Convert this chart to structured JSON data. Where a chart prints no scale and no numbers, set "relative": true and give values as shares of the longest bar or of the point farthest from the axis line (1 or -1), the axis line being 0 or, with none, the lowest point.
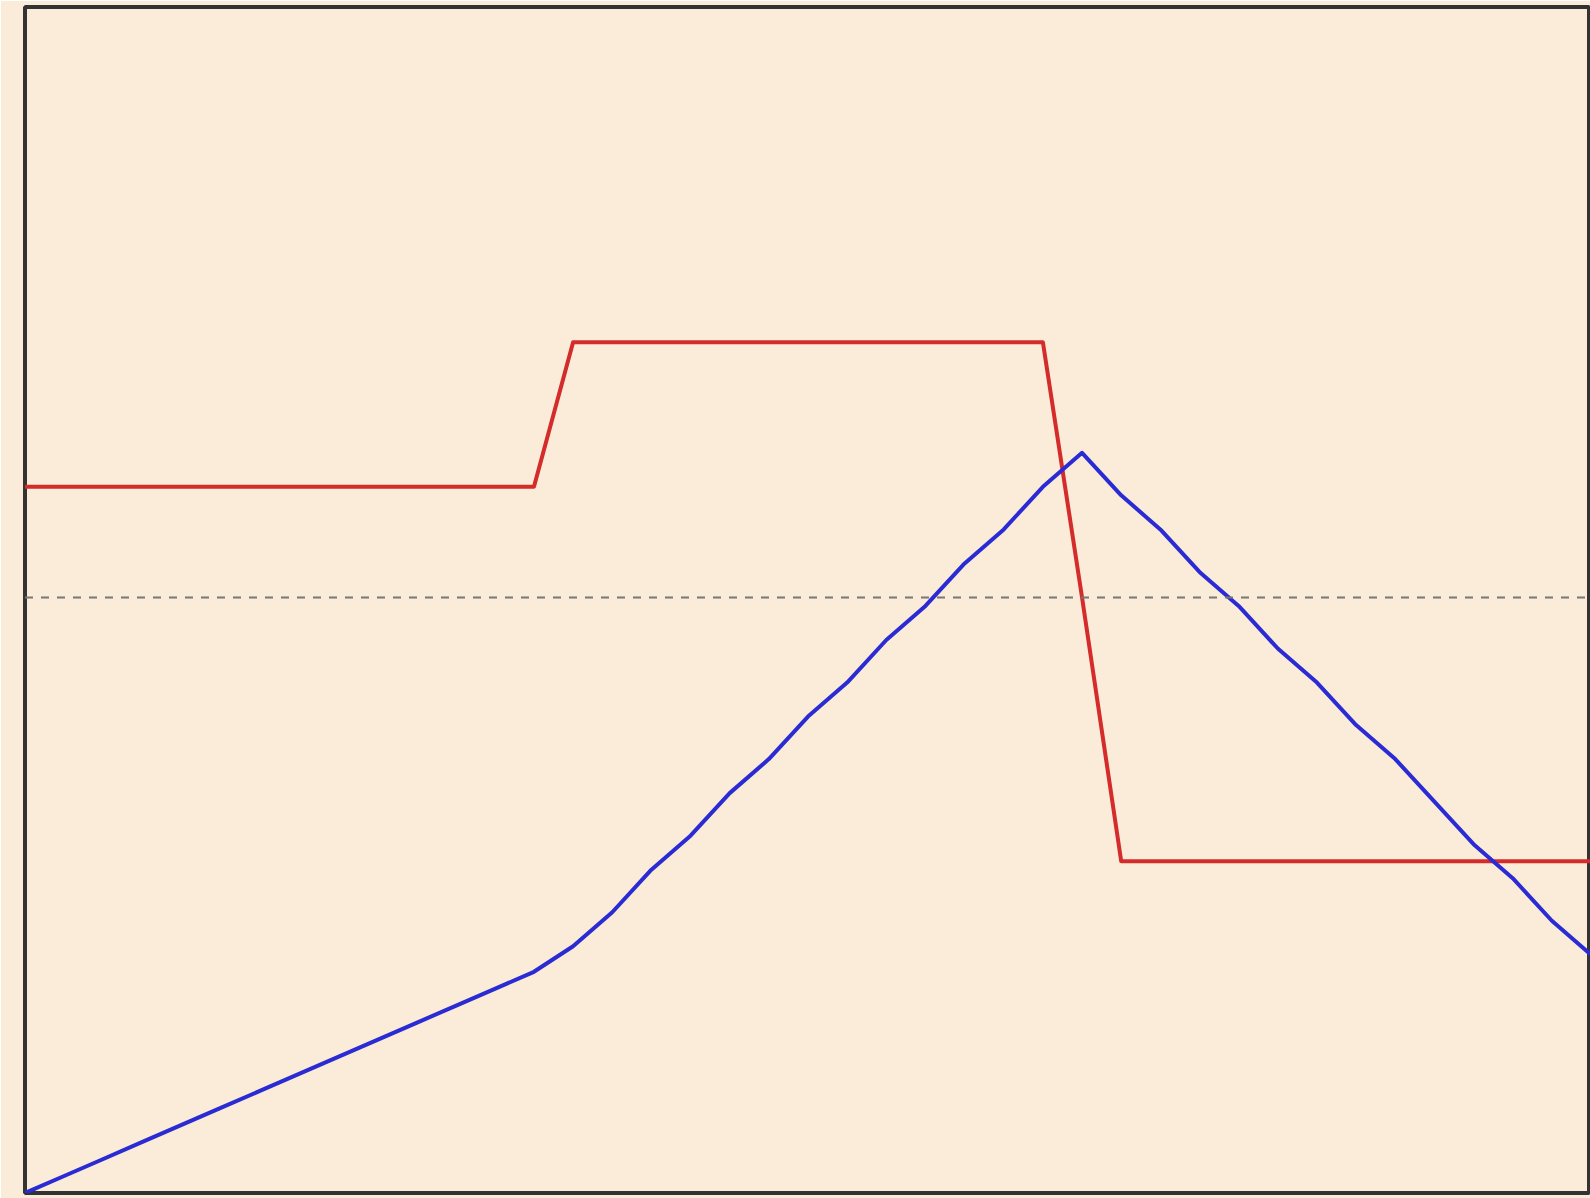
{
  "chart_data": {
    "type": "line",
    "relative": true,
    "grid": false,
    "marker": "none",
    "line_style": "solid",
    "categories": [
      null,
      null,
      null,
      null,
      null,
      null,
      null,
      null,
      null,
      null,
      null,
      null,
      null,
      null,
      null,
      null,
      null,
      null,
      null,
      null,
      null,
      null,
      null,
      null,
      null,
      null,
      null,
      null,
      null,
      null,
      null,
      null,
      null,
      null,
      null,
      null,
      null,
      null,
      null,
      null,
      null
    ],
    "series": [
      {
        "color": "#d42b2b",
        "values": [
          0.83,
          0.83,
          0.83,
          0.83,
          0.83,
          0.83,
          0.83,
          0.83,
          0.83,
          0.83,
          0.83,
          0.83,
          0.83,
          0.83,
          1.0,
          1.0,
          1.0,
          1.0,
          1.0,
          1.0,
          1.0,
          1.0,
          1.0,
          1.0,
          1.0,
          1.0,
          1.0,
          0.7,
          0.39,
          0.39,
          0.39,
          0.39,
          0.39,
          0.39,
          0.39,
          0.39,
          0.39,
          0.39,
          0.39,
          0.39,
          0.39
        ]
      },
      {
        "color": "#2b2bd4",
        "values": [
          0,
          0.02,
          0.04,
          0.06,
          0.08,
          0.1,
          0.12,
          0.14,
          0.16,
          0.18,
          0.2,
          0.22,
          0.24,
          0.26,
          0.29,
          0.33,
          0.38,
          0.42,
          0.47,
          0.51,
          0.56,
          0.6,
          0.65,
          0.69,
          0.74,
          0.78,
          0.83,
          0.87,
          0.82,
          0.78,
          0.73,
          0.69,
          0.64,
          0.6,
          0.55,
          0.51,
          0.46,
          0.41,
          0.37,
          0.32,
          0.28
        ]
      }
    ],
    "ref_lines": [
      {
        "axis": "y",
        "value": 0.7,
        "label": null,
        "color": "#777777",
        "line_style": "dotted"
      }
    ]
  }
}
